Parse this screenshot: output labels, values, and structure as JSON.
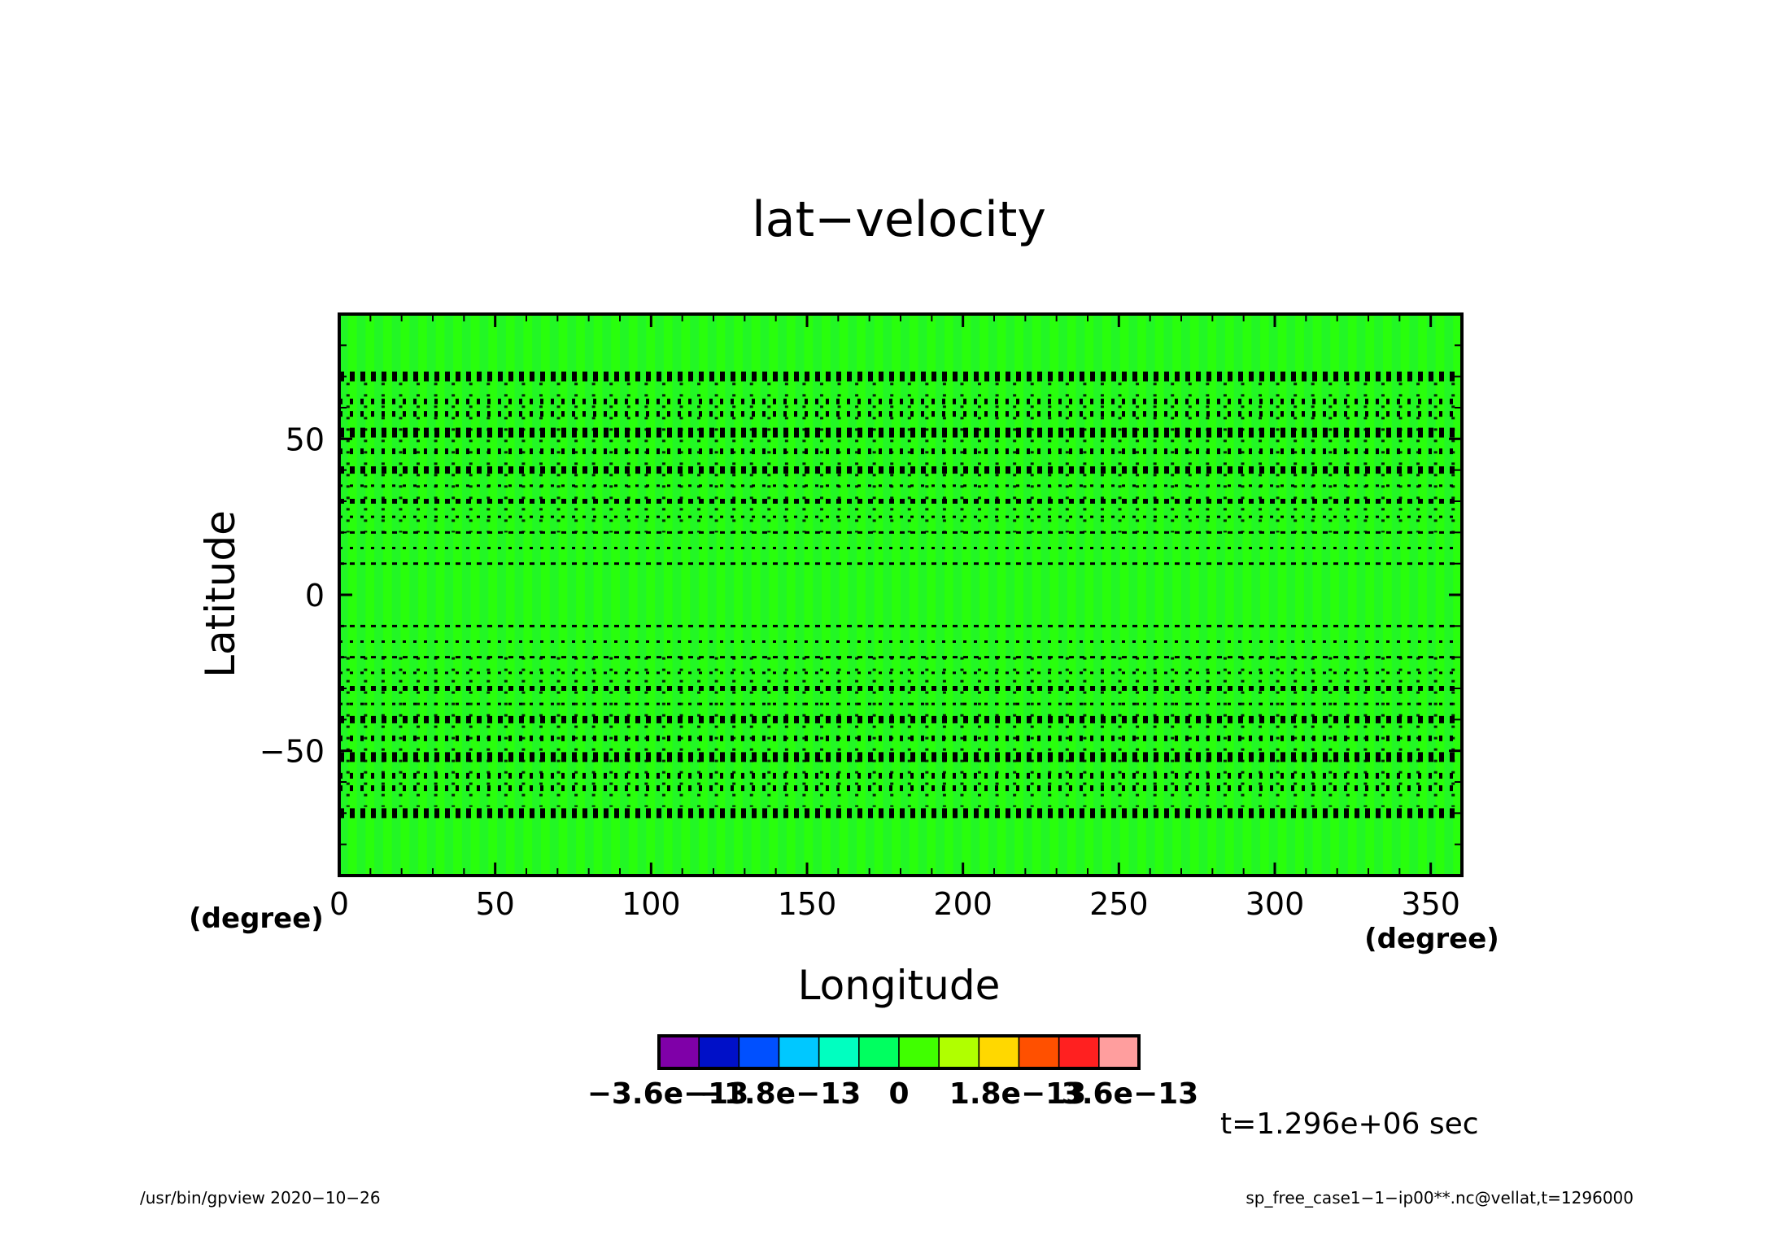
{
  "chart_data": {
    "type": "heatmap",
    "title": "lat−velocity",
    "xlabel": "Longitude",
    "ylabel": "Latitude",
    "xunit": "(degree)",
    "yunit": "(degree)",
    "xlim": [
      0,
      360
    ],
    "ylim": [
      -90,
      90
    ],
    "xticks": [
      0,
      50,
      100,
      150,
      200,
      250,
      300,
      350
    ],
    "yticks": [
      -50,
      0,
      50
    ],
    "xtick_labels": [
      "0",
      "50",
      "100",
      "150",
      "200",
      "250",
      "300",
      "350"
    ],
    "ytick_labels": [
      "−50",
      "0",
      "50"
    ],
    "dominant_value": 0,
    "colorbar": {
      "colors": [
        "#7f00a8",
        "#0010c8",
        "#0050ff",
        "#00c8ff",
        "#00ffc0",
        "#00ff60",
        "#40ff00",
        "#b0ff00",
        "#ffd800",
        "#ff5000",
        "#ff2020",
        "#ff9e9e"
      ],
      "tick_labels": [
        "−3.6e−13",
        "−1.8e−13",
        "0",
        "1.8e−13",
        "3.6e−13"
      ]
    },
    "time_label": "t=1.296e+06 sec",
    "contour_band_latitudes": [
      70,
      52,
      40,
      30,
      20,
      10,
      -10,
      -20,
      -30,
      -40,
      -52,
      -70
    ]
  },
  "footer": {
    "left": "/usr/bin/gpview   2020−10−26",
    "right": "sp_free_case1−1−ip00**.nc@vellat,t=1296000"
  },
  "colors": {
    "field_primary": "#29ff0c",
    "field_secondary": "#21f62a",
    "contour": "#000000"
  }
}
